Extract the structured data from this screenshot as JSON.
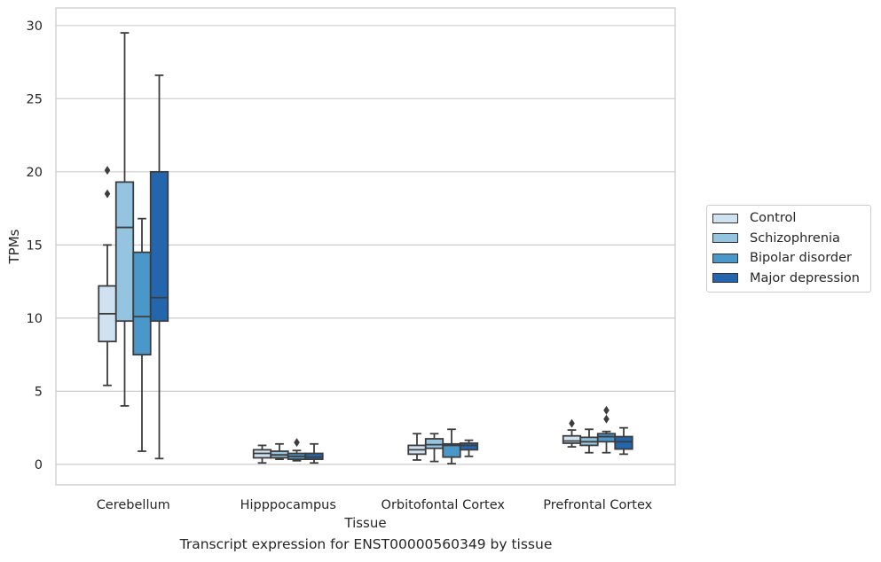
{
  "chart_data": {
    "type": "box",
    "xlabel": "Tissue",
    "ylabel": "TPMs",
    "ylim": [
      -1.4,
      31.2
    ],
    "yticks": [
      0,
      5,
      10,
      15,
      20,
      25,
      30
    ],
    "grid": true,
    "legend_position": "right",
    "categories": [
      "Cerebellum",
      "Hipppocampus",
      "Orbitofontal Cortex",
      "Prefrontal Cortex"
    ],
    "series": [
      {
        "name": "Control",
        "color": "#d0e1f2",
        "boxes": [
          {
            "whislo": 5.4,
            "q1": 8.4,
            "med": 10.3,
            "q3": 12.2,
            "whishi": 15.0,
            "fliers": [
              18.5,
              20.1
            ]
          },
          {
            "whislo": 0.1,
            "q1": 0.45,
            "med": 0.75,
            "q3": 1.0,
            "whishi": 1.3,
            "fliers": []
          },
          {
            "whislo": 0.3,
            "q1": 0.7,
            "med": 1.0,
            "q3": 1.3,
            "whishi": 2.1,
            "fliers": []
          },
          {
            "whislo": 1.2,
            "q1": 1.45,
            "med": 1.6,
            "q3": 1.95,
            "whishi": 2.35,
            "fliers": [
              2.8
            ]
          }
        ]
      },
      {
        "name": "Schizophrenia",
        "color": "#94c4df",
        "boxes": [
          {
            "whislo": 4.0,
            "q1": 9.8,
            "med": 16.2,
            "q3": 19.3,
            "whishi": 29.5,
            "fliers": []
          },
          {
            "whislo": 0.35,
            "q1": 0.45,
            "med": 0.65,
            "q3": 0.9,
            "whishi": 1.4,
            "fliers": []
          },
          {
            "whislo": 0.2,
            "q1": 1.1,
            "med": 1.35,
            "q3": 1.75,
            "whishi": 2.1,
            "fliers": []
          },
          {
            "whislo": 0.8,
            "q1": 1.3,
            "med": 1.55,
            "q3": 1.85,
            "whishi": 2.4,
            "fliers": []
          }
        ]
      },
      {
        "name": "Bipolar disorder",
        "color": "#4a98c9",
        "boxes": [
          {
            "whislo": 0.9,
            "q1": 7.5,
            "med": 10.1,
            "q3": 14.5,
            "whishi": 16.8,
            "fliers": []
          },
          {
            "whislo": 0.25,
            "q1": 0.35,
            "med": 0.55,
            "q3": 0.75,
            "whishi": 0.95,
            "fliers": [
              1.5
            ]
          },
          {
            "whislo": 0.05,
            "q1": 0.5,
            "med": 1.3,
            "q3": 1.4,
            "whishi": 2.4,
            "fliers": []
          },
          {
            "whislo": 0.8,
            "q1": 1.55,
            "med": 1.9,
            "q3": 2.1,
            "whishi": 2.25,
            "fliers": [
              3.1,
              3.7
            ]
          }
        ]
      },
      {
        "name": "Major depression",
        "color": "#2366ad",
        "boxes": [
          {
            "whislo": 0.4,
            "q1": 9.8,
            "med": 11.4,
            "q3": 20.0,
            "whishi": 26.6,
            "fliers": []
          },
          {
            "whislo": 0.1,
            "q1": 0.35,
            "med": 0.5,
            "q3": 0.75,
            "whishi": 1.4,
            "fliers": []
          },
          {
            "whislo": 0.55,
            "q1": 1.0,
            "med": 1.3,
            "q3": 1.45,
            "whishi": 1.65,
            "fliers": []
          },
          {
            "whislo": 0.7,
            "q1": 1.05,
            "med": 1.55,
            "q3": 1.9,
            "whishi": 2.5,
            "fliers": []
          }
        ]
      }
    ]
  },
  "caption": "Transcript expression for ENST00000560349 by tissue"
}
